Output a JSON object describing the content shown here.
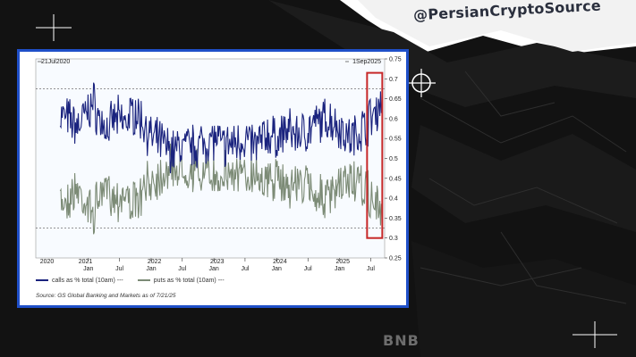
{
  "overlay": {
    "handle": "@PersianCryptoSource",
    "watermark": "BNB"
  },
  "chart_data": {
    "type": "line",
    "date_range": {
      "start_label": "21Jul2020",
      "end_label": "1Sep2025"
    },
    "year_labels": [
      "2020",
      "2021",
      "2022",
      "2023",
      "2024",
      "2025"
    ],
    "month_ticks": [
      "Jan",
      "Jul",
      "Jan",
      "Jul",
      "Jan",
      "Jul",
      "Jan",
      "Jul",
      "Jan",
      "Jul"
    ],
    "y_ticks": [
      0.25,
      0.3,
      0.35,
      0.4,
      0.45,
      0.5,
      0.55,
      0.6,
      0.65,
      0.7,
      0.75
    ],
    "ylim": [
      0.25,
      0.75
    ],
    "reference_lines": [
      0.675,
      0.325
    ],
    "highlight_range": [
      "2025-06-15",
      "2025-09-01"
    ],
    "colors": {
      "calls": "#1a237e",
      "puts": "#7c8b76",
      "highlight": "#c62828",
      "frame": "#1f4fc8"
    },
    "series": [
      {
        "name": "calls as % total (10am)",
        "points": [
          [
            "2020-07-21",
            0.61
          ],
          [
            "2020-09-01",
            0.6
          ],
          [
            "2020-11-01",
            0.58
          ],
          [
            "2021-01-01",
            0.62
          ],
          [
            "2021-02-01",
            0.64
          ],
          [
            "2021-03-01",
            0.6
          ],
          [
            "2021-05-01",
            0.57
          ],
          [
            "2021-06-01",
            0.6
          ],
          [
            "2021-08-01",
            0.59
          ],
          [
            "2021-10-01",
            0.62
          ],
          [
            "2021-12-01",
            0.58
          ],
          [
            "2022-01-01",
            0.55
          ],
          [
            "2022-03-01",
            0.54
          ],
          [
            "2022-05-01",
            0.52
          ],
          [
            "2022-07-01",
            0.53
          ],
          [
            "2022-09-01",
            0.53
          ],
          [
            "2022-11-01",
            0.54
          ],
          [
            "2023-01-01",
            0.55
          ],
          [
            "2023-03-01",
            0.53
          ],
          [
            "2023-05-01",
            0.54
          ],
          [
            "2023-07-01",
            0.55
          ],
          [
            "2023-09-01",
            0.53
          ],
          [
            "2023-11-01",
            0.56
          ],
          [
            "2024-01-01",
            0.55
          ],
          [
            "2024-03-01",
            0.57
          ],
          [
            "2024-05-01",
            0.56
          ],
          [
            "2024-07-01",
            0.57
          ],
          [
            "2024-09-01",
            0.59
          ],
          [
            "2024-11-01",
            0.6
          ],
          [
            "2025-01-01",
            0.58
          ],
          [
            "2025-03-01",
            0.55
          ],
          [
            "2025-05-01",
            0.57
          ],
          [
            "2025-07-01",
            0.6
          ],
          [
            "2025-08-01",
            0.62
          ],
          [
            "2025-09-01",
            0.64
          ]
        ]
      },
      {
        "name": "puts as % total (10am)",
        "points": [
          [
            "2020-07-21",
            0.39
          ],
          [
            "2020-09-01",
            0.4
          ],
          [
            "2020-11-01",
            0.42
          ],
          [
            "2021-01-01",
            0.38
          ],
          [
            "2021-02-01",
            0.36
          ],
          [
            "2021-03-01",
            0.4
          ],
          [
            "2021-05-01",
            0.43
          ],
          [
            "2021-06-01",
            0.4
          ],
          [
            "2021-08-01",
            0.41
          ],
          [
            "2021-10-01",
            0.38
          ],
          [
            "2021-12-01",
            0.42
          ],
          [
            "2022-01-01",
            0.45
          ],
          [
            "2022-03-01",
            0.46
          ],
          [
            "2022-05-01",
            0.48
          ],
          [
            "2022-07-01",
            0.47
          ],
          [
            "2022-09-01",
            0.47
          ],
          [
            "2022-11-01",
            0.46
          ],
          [
            "2023-01-01",
            0.45
          ],
          [
            "2023-03-01",
            0.47
          ],
          [
            "2023-05-01",
            0.46
          ],
          [
            "2023-07-01",
            0.45
          ],
          [
            "2023-09-01",
            0.47
          ],
          [
            "2023-11-01",
            0.44
          ],
          [
            "2024-01-01",
            0.45
          ],
          [
            "2024-03-01",
            0.43
          ],
          [
            "2024-05-01",
            0.44
          ],
          [
            "2024-07-01",
            0.43
          ],
          [
            "2024-09-01",
            0.41
          ],
          [
            "2024-11-01",
            0.4
          ],
          [
            "2025-01-01",
            0.42
          ],
          [
            "2025-03-01",
            0.45
          ],
          [
            "2025-05-01",
            0.43
          ],
          [
            "2025-07-01",
            0.4
          ],
          [
            "2025-08-01",
            0.38
          ],
          [
            "2025-09-01",
            0.36
          ]
        ]
      }
    ],
    "legend": [
      {
        "label": "calls as % total (10am)",
        "suffix": "---"
      },
      {
        "label": "puts as % total (10am)",
        "suffix": "---"
      }
    ],
    "source": "Source: GS Global Banking and Markets as of 7/21/25"
  }
}
